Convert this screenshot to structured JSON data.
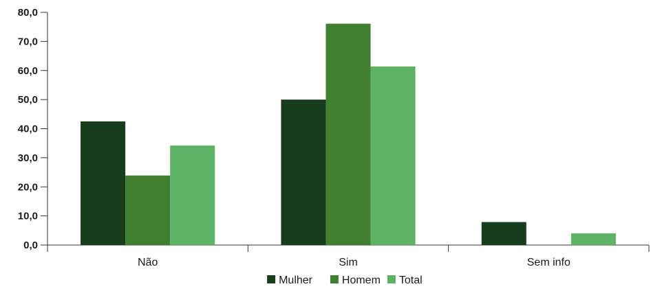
{
  "chart_data": {
    "type": "bar",
    "categories": [
      "Não",
      "Sim",
      "Sem info"
    ],
    "series": [
      {
        "name": "Mulher",
        "values": [
          42.5,
          50.0,
          7.9
        ],
        "color": "#173d1d"
      },
      {
        "name": "Homem",
        "values": [
          23.9,
          76.1,
          0.0
        ],
        "color": "#3f7f2f"
      },
      {
        "name": "Total",
        "values": [
          34.2,
          61.4,
          4.0
        ],
        "color": "#5db363"
      }
    ],
    "yticks": [
      "0,0",
      "10,0",
      "20,0",
      "30,0",
      "40,0",
      "50,0",
      "60,0",
      "70,0",
      "80,0"
    ],
    "ylim": [
      0,
      80
    ],
    "grid": false,
    "legend": "bottom-center"
  }
}
